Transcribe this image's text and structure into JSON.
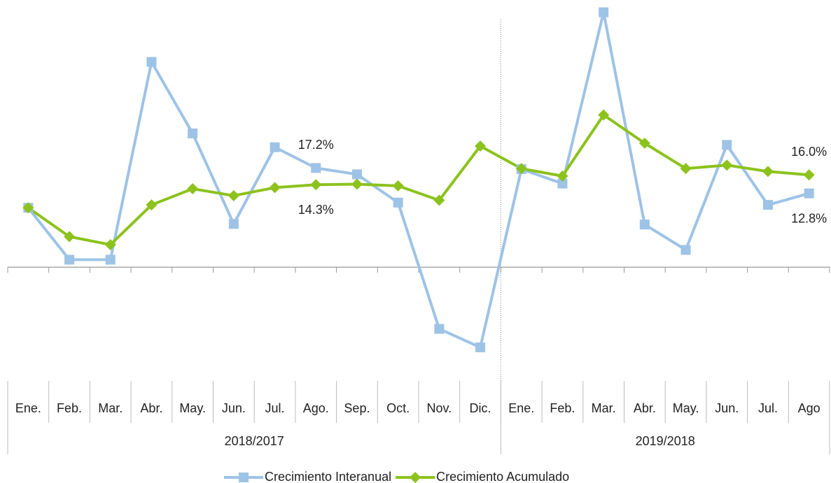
{
  "chart_data": {
    "type": "line",
    "groups": [
      {
        "name": "2018/2017",
        "categories": [
          "Ene.",
          "Feb.",
          "Mar.",
          "Abr.",
          "May.",
          "Jun.",
          "Jul.",
          "Ago.",
          "Sep.",
          "Oct.",
          "Nov.",
          "Dic."
        ]
      },
      {
        "name": "2019/2018",
        "categories": [
          "Ene.",
          "Feb.",
          "Mar.",
          "Abr.",
          "May.",
          "Jun.",
          "Jul.",
          "Ago"
        ]
      }
    ],
    "series": [
      {
        "name": "Crecimiento Interanual",
        "color": "#9dc3e6",
        "marker": "square",
        "values": [
          10.3,
          1.3,
          1.3,
          35.6,
          23.2,
          7.5,
          20.8,
          17.2,
          16.1,
          11.2,
          -10.7,
          -13.9,
          17.0,
          14.5,
          44.2,
          7.4,
          3.0,
          21.2,
          10.8,
          12.8
        ],
        "value_labels": [
          null,
          null,
          null,
          null,
          null,
          null,
          null,
          "17.2%",
          null,
          null,
          null,
          null,
          null,
          null,
          null,
          null,
          null,
          null,
          null,
          "12.8%"
        ]
      },
      {
        "name": "Crecimiento Acumulado",
        "color": "#8cc21c",
        "marker": "diamond",
        "values": [
          10.3,
          5.3,
          3.9,
          10.8,
          13.6,
          12.4,
          13.8,
          14.3,
          14.4,
          14.1,
          11.6,
          21.0,
          17.1,
          15.8,
          26.4,
          21.5,
          17.1,
          17.7,
          16.6,
          16.0
        ],
        "value_labels": [
          null,
          null,
          null,
          null,
          null,
          null,
          null,
          "14.3%",
          null,
          null,
          null,
          null,
          null,
          null,
          null,
          null,
          null,
          null,
          null,
          "16.0%"
        ]
      }
    ],
    "ylim": [
      -19,
      45
    ]
  }
}
